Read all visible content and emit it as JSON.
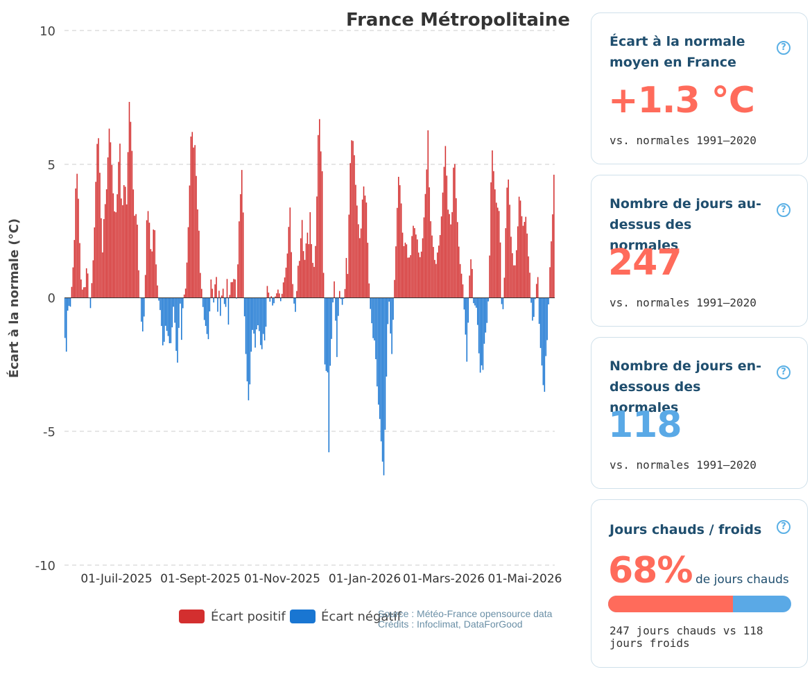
{
  "chart_data": {
    "type": "bar",
    "title": "France Métropolitaine",
    "ylabel": "Écart à la normale (°C)",
    "ylim": [
      -10,
      10
    ],
    "yticks": [
      "10",
      "5",
      "0",
      "-5",
      "-10"
    ],
    "grid": true,
    "x_start": "2025-05-01",
    "x_tick_labels": [
      "01-Juil-2025",
      "01-Sept-2025",
      "01-Nov-2025",
      "01-Jan-2026",
      "01-Mars-2026",
      "01-Mai-2026"
    ],
    "legend": [
      "Écart positif",
      "Écart négatif"
    ],
    "legend_position": "bottom",
    "positive_color": "#d32f2f",
    "negative_color": "#1976d2",
    "anchors": [
      [
        0,
        -1.5
      ],
      [
        1,
        -2.1
      ],
      [
        2,
        0.2
      ],
      [
        3,
        -0.7
      ],
      [
        4,
        0.2
      ],
      [
        5,
        1.0
      ],
      [
        6,
        2.2
      ],
      [
        7,
        4.5
      ],
      [
        8,
        4.7
      ],
      [
        9,
        2.8
      ],
      [
        10,
        0.8
      ],
      [
        11,
        0.3
      ],
      [
        12,
        0.4
      ],
      [
        13,
        0.4
      ],
      [
        14,
        1.5
      ],
      [
        15,
        0.3
      ],
      [
        16,
        -0.6
      ],
      [
        17,
        0.5
      ],
      [
        18,
        1.5
      ],
      [
        19,
        3.0
      ],
      [
        20,
        5.2
      ],
      [
        21,
        6.4
      ],
      [
        22,
        5.0
      ],
      [
        23,
        3.0
      ],
      [
        24,
        1.5
      ],
      [
        25,
        3.5
      ],
      [
        26,
        3.5
      ],
      [
        27,
        4.8
      ],
      [
        28,
        6.4
      ],
      [
        29,
        5.8
      ],
      [
        30,
        4.8
      ],
      [
        31,
        3.5
      ],
      [
        32,
        3.0
      ],
      [
        33,
        3.5
      ],
      [
        34,
        5.0
      ],
      [
        35,
        5.8
      ],
      [
        36,
        3.2
      ],
      [
        37,
        3.6
      ],
      [
        38,
        4.8
      ],
      [
        39,
        3.0
      ],
      [
        40,
        5.3
      ],
      [
        41,
        7.5
      ],
      [
        42,
        6.3
      ],
      [
        43,
        5.0
      ],
      [
        44,
        3.0
      ],
      [
        45,
        3.2
      ],
      [
        46,
        2.8
      ],
      [
        47,
        0.8
      ],
      [
        48,
        -0.3
      ],
      [
        49,
        -1.3
      ],
      [
        50,
        -1.2
      ],
      [
        51,
        0.5
      ],
      [
        52,
        2.9
      ],
      [
        53,
        3.3
      ],
      [
        54,
        2.6
      ],
      [
        55,
        1.2
      ],
      [
        56,
        2.5
      ],
      [
        57,
        2.7
      ],
      [
        58,
        1.2
      ],
      [
        59,
        0.3
      ],
      [
        60,
        -0.3
      ],
      [
        61,
        -0.6
      ],
      [
        62,
        -1.8
      ],
      [
        63,
        -1.7
      ],
      [
        64,
        -1.0
      ],
      [
        65,
        -1.3
      ],
      [
        66,
        -1.5
      ],
      [
        67,
        -1.9
      ],
      [
        68,
        -1.3
      ],
      [
        69,
        -0.3
      ],
      [
        70,
        -1.0
      ],
      [
        71,
        -2.3
      ],
      [
        72,
        -2.5
      ],
      [
        73,
        0.5
      ],
      [
        74,
        -1.8
      ],
      [
        75,
        -0.4
      ],
      [
        76,
        0.2
      ],
      [
        77,
        0.4
      ],
      [
        78,
        2.0
      ],
      [
        79,
        3.5
      ],
      [
        80,
        6.0
      ],
      [
        81,
        6.2
      ],
      [
        82,
        5.5
      ],
      [
        83,
        5.8
      ],
      [
        84,
        3.5
      ],
      [
        85,
        3.0
      ],
      [
        86,
        1.0
      ],
      [
        87,
        0.3
      ],
      [
        88,
        -0.5
      ],
      [
        89,
        -1.0
      ],
      [
        90,
        -1.1
      ],
      [
        91,
        -1.8
      ],
      [
        92,
        -0.6
      ],
      [
        93,
        0.8
      ],
      [
        94,
        0.2
      ],
      [
        95,
        -0.4
      ],
      [
        96,
        1.5
      ],
      [
        97,
        -0.7
      ],
      [
        98,
        0.3
      ],
      [
        99,
        -0.8
      ],
      [
        100,
        0.4
      ],
      [
        101,
        0.3
      ],
      [
        102,
        -0.9
      ],
      [
        103,
        1.0
      ],
      [
        104,
        -1.0
      ],
      [
        105,
        0.3
      ],
      [
        106,
        0.7
      ],
      [
        107,
        0.5
      ],
      [
        108,
        1.0
      ],
      [
        109,
        -0.2
      ],
      [
        110,
        1.3
      ],
      [
        111,
        3.2
      ],
      [
        112,
        4.2
      ],
      [
        113,
        5.3
      ],
      [
        114,
        -0.3
      ],
      [
        115,
        -2.0
      ],
      [
        116,
        -3.2
      ],
      [
        117,
        -4.0
      ],
      [
        118,
        -2.8
      ],
      [
        119,
        -1.2
      ],
      [
        120,
        -1.2
      ],
      [
        121,
        -1.9
      ],
      [
        122,
        -1.1
      ],
      [
        123,
        -1.0
      ],
      [
        124,
        -1.4
      ],
      [
        125,
        -2.2
      ],
      [
        126,
        -1.3
      ],
      [
        127,
        -1.6
      ],
      [
        128,
        -1.0
      ],
      [
        129,
        1.0
      ],
      [
        130,
        -0.4
      ],
      [
        131,
        0.2
      ],
      [
        132,
        -0.3
      ],
      [
        133,
        -0.2
      ],
      [
        134,
        0.1
      ],
      [
        135,
        0.2
      ],
      [
        136,
        0.4
      ],
      [
        137,
        -0.2
      ],
      [
        138,
        0.1
      ],
      [
        139,
        0.6
      ],
      [
        140,
        0.8
      ],
      [
        141,
        1.3
      ],
      [
        142,
        2.0
      ],
      [
        143,
        3.8
      ],
      [
        144,
        1.8
      ],
      [
        145,
        0.4
      ],
      [
        146,
        -0.4
      ],
      [
        147,
        -0.6
      ],
      [
        148,
        1.2
      ],
      [
        149,
        1.2
      ],
      [
        150,
        2.2
      ],
      [
        151,
        3.0
      ],
      [
        152,
        1.3
      ],
      [
        153,
        1.5
      ],
      [
        154,
        2.7
      ],
      [
        155,
        1.8
      ],
      [
        156,
        3.2
      ],
      [
        157,
        1.8
      ],
      [
        158,
        1.1
      ],
      [
        159,
        1.2
      ],
      [
        160,
        3.0
      ],
      [
        161,
        6.0
      ],
      [
        162,
        6.7
      ],
      [
        163,
        5.2
      ],
      [
        164,
        4.5
      ],
      [
        165,
        -2.3
      ],
      [
        166,
        -2.8
      ],
      [
        167,
        -2.5
      ],
      [
        168,
        -6.0
      ],
      [
        169,
        -1.6
      ],
      [
        170,
        -1.5
      ],
      [
        171,
        1.2
      ],
      [
        172,
        -0.5
      ],
      [
        173,
        -2.3
      ],
      [
        174,
        -0.5
      ],
      [
        175,
        0.5
      ],
      [
        176,
        -0.4
      ],
      [
        177,
        -0.1
      ],
      [
        178,
        0.1
      ],
      [
        179,
        1.5
      ],
      [
        180,
        0.8
      ],
      [
        181,
        4.0
      ],
      [
        182,
        5.8
      ],
      [
        183,
        6.0
      ],
      [
        184,
        5.5
      ],
      [
        185,
        4.2
      ],
      [
        186,
        3.3
      ],
      [
        187,
        2.5
      ],
      [
        188,
        2.0
      ],
      [
        189,
        3.5
      ],
      [
        190,
        4.2
      ],
      [
        191,
        3.8
      ],
      [
        192,
        3.5
      ],
      [
        193,
        1.3
      ],
      [
        194,
        -0.2
      ],
      [
        195,
        -0.8
      ],
      [
        196,
        -1.5
      ],
      [
        197,
        -1.6
      ],
      [
        198,
        -2.5
      ],
      [
        199,
        -3.8
      ],
      [
        200,
        -4.2
      ],
      [
        201,
        -5.2
      ],
      [
        202,
        -6.1
      ],
      [
        203,
        -6.7
      ],
      [
        204,
        -4.3
      ],
      [
        205,
        -2.0
      ],
      [
        206,
        0.3
      ],
      [
        207,
        -1.2
      ],
      [
        208,
        -2.1
      ],
      [
        209,
        -0.6
      ],
      [
        210,
        1.2
      ],
      [
        211,
        2.5
      ],
      [
        212,
        4.6
      ],
      [
        213,
        4.3
      ],
      [
        214,
        3.5
      ],
      [
        215,
        2.2
      ],
      [
        216,
        1.8
      ],
      [
        217,
        2.3
      ],
      [
        218,
        1.5
      ],
      [
        219,
        1.5
      ],
      [
        220,
        1.6
      ],
      [
        221,
        2.5
      ],
      [
        222,
        2.8
      ],
      [
        223,
        2.4
      ],
      [
        224,
        2.3
      ],
      [
        225,
        1.7
      ],
      [
        226,
        1.5
      ],
      [
        227,
        1.8
      ],
      [
        228,
        2.5
      ],
      [
        229,
        3.6
      ],
      [
        230,
        4.5
      ],
      [
        231,
        6.3
      ],
      [
        232,
        3.8
      ],
      [
        233,
        2.5
      ],
      [
        234,
        2.2
      ],
      [
        235,
        1.5
      ],
      [
        236,
        1.2
      ],
      [
        237,
        1.7
      ],
      [
        238,
        2.0
      ],
      [
        239,
        2.5
      ],
      [
        240,
        3.5
      ],
      [
        241,
        4.6
      ],
      [
        242,
        5.8
      ],
      [
        243,
        4.5
      ],
      [
        244,
        3.0
      ],
      [
        245,
        3.2
      ],
      [
        246,
        2.3
      ],
      [
        247,
        4.8
      ],
      [
        248,
        5.1
      ],
      [
        249,
        3.6
      ],
      [
        250,
        2.6
      ],
      [
        251,
        1.5
      ],
      [
        252,
        1.0
      ],
      [
        253,
        0.7
      ],
      [
        254,
        -0.4
      ],
      [
        255,
        -1.5
      ],
      [
        256,
        -2.7
      ],
      [
        257,
        0.3
      ],
      [
        258,
        1.5
      ],
      [
        259,
        1.3
      ],
      [
        260,
        -0.2
      ],
      [
        261,
        -0.3
      ],
      [
        262,
        -0.4
      ],
      [
        263,
        -1.5
      ],
      [
        264,
        -2.9
      ],
      [
        265,
        -2.5
      ],
      [
        266,
        -2.7
      ],
      [
        267,
        -1.5
      ],
      [
        268,
        -1.2
      ],
      [
        269,
        -0.7
      ],
      [
        270,
        0.8
      ],
      [
        271,
        4.2
      ],
      [
        272,
        5.6
      ],
      [
        273,
        4.5
      ],
      [
        274,
        3.8
      ],
      [
        275,
        3.3
      ],
      [
        276,
        3.5
      ],
      [
        277,
        2.2
      ],
      [
        278,
        -0.5
      ],
      [
        279,
        -0.4
      ],
      [
        280,
        1.5
      ],
      [
        281,
        3.9
      ],
      [
        282,
        4.6
      ],
      [
        283,
        3.5
      ],
      [
        284,
        2.1
      ],
      [
        285,
        1.5
      ],
      [
        286,
        1.0
      ],
      [
        287,
        1.5
      ],
      [
        288,
        2.5
      ],
      [
        289,
        3.8
      ],
      [
        290,
        3.6
      ],
      [
        291,
        2.8
      ],
      [
        292,
        2.6
      ],
      [
        293,
        3.2
      ],
      [
        294,
        2.5
      ],
      [
        295,
        1.5
      ],
      [
        296,
        0.8
      ],
      [
        297,
        -0.7
      ],
      [
        298,
        -1.0
      ],
      [
        299,
        -0.2
      ],
      [
        300,
        0.5
      ],
      [
        301,
        0.8
      ],
      [
        302,
        -1.5
      ],
      [
        303,
        -2.1
      ],
      [
        304,
        -3.0
      ],
      [
        305,
        -3.8
      ],
      [
        306,
        -2.2
      ],
      [
        307,
        -1.5
      ],
      [
        308,
        0.2
      ],
      [
        309,
        1.8
      ],
      [
        310,
        2.5
      ],
      [
        311,
        4.6
      ]
    ]
  },
  "cards": [
    {
      "title": "Écart à la normale moyen en France",
      "value": "+1.3 °C",
      "note": "vs. normales 1991–2020",
      "value_color": "#ff6b5b"
    },
    {
      "title": "Nombre de jours au-dessus des normales",
      "value": "247",
      "note": "vs. normales 1991–2020",
      "value_color": "#ff6b5b"
    },
    {
      "title": "Nombre de jours en-dessous des normales",
      "value": "118",
      "note": "vs. normales 1991–2020",
      "value_color": "#5aa9e6"
    },
    {
      "title": "Jours chauds / froids",
      "value": "68%",
      "value_suffix": "de jours chauds",
      "note": "247 jours chauds vs 118 jours froids",
      "hot_fraction": 0.68,
      "value_color": "#ff6b5b"
    }
  ],
  "help_symbol": "?",
  "source_line1": "Source : Météo-France opensource data",
  "source_line2": "Crédits : Infoclimat, DataForGood"
}
